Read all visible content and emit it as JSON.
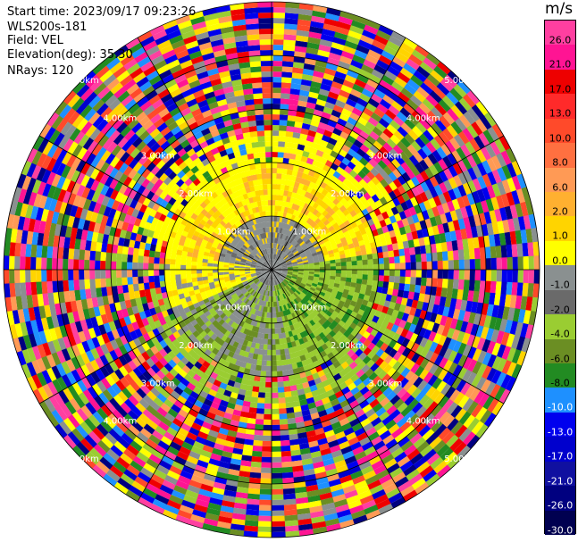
{
  "header": {
    "start_time": "Start time: 2023/09/17 09:23:26",
    "instrument": "WLS200s-181",
    "field": "Field: VEL",
    "elevation": "Elevation(deg): 35.30",
    "nrays": "NRays: 120"
  },
  "colorbar": {
    "unit": "m/s",
    "ticks": [
      "26.0",
      "21.0",
      "17.0",
      "13.0",
      "10.0",
      "8.0",
      "6.0",
      "2.0",
      "1.0",
      "0.0",
      "-1.0",
      "-2.0",
      "-4.0",
      "-6.0",
      "-8.0",
      "-10.0",
      "-13.0",
      "-17.0",
      "-21.0",
      "-26.0",
      "-30.0"
    ],
    "colors": [
      "#ff3fa0",
      "#ff1493",
      "#ee0000",
      "#ff2a2a",
      "#ff4a2a",
      "#ff7040",
      "#ff9a55",
      "#ffb030",
      "#ffd400",
      "#ffff00",
      "#8a9090",
      "#6a6a6a",
      "#9acd32",
      "#6b8e23",
      "#228b22",
      "#1e90ff",
      "#0000ee",
      "#0000cd",
      "#1010a0",
      "#000080",
      "#000050"
    ]
  },
  "chart_data": {
    "type": "heatmap",
    "subtype": "radar-ppi",
    "field": "VEL",
    "nrays": 120,
    "range_rings": [
      "1.00km",
      "2.00km",
      "3.00km",
      "4.00km",
      "5.00km"
    ],
    "unit": "m/s"
  }
}
